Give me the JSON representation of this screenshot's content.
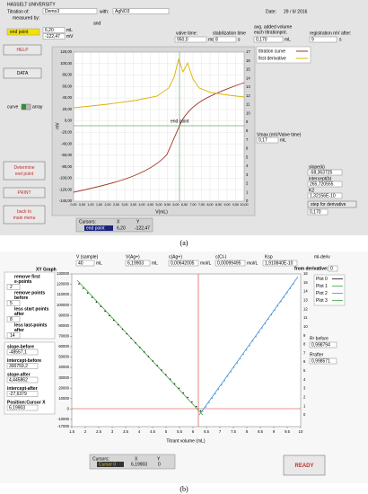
{
  "panel_a": {
    "university": "HASSELT UNIVERSITY",
    "titration_of_label": "Titration of:",
    "titration_of": "Demo3",
    "with_label": "with:",
    "with": "AgNO3",
    "measured_by_label": "measured by:",
    "and_label": "and",
    "date_label": "Date:",
    "date": "29 / 6/ 2016",
    "end_point": {
      "label": "end point",
      "x": "6,20",
      "x_unit": "mL",
      "y": "-122,47",
      "y_unit": "mV"
    },
    "valve_time": {
      "label": "valve time:",
      "value": "950,0",
      "unit": "ms"
    },
    "stabilization_time": {
      "label": "stabilization time",
      "value": "8",
      "unit": "s"
    },
    "avg_volume": {
      "label": [
        "avg. added volume",
        "each titrationpnt."
      ],
      "value": "0,170",
      "unit": "mL"
    },
    "registration": {
      "label": "registration mV after:",
      "value": "9",
      "unit": "s"
    },
    "buttons": {
      "help": "HELP",
      "data": "DATA",
      "determine": [
        "Determine",
        "end point"
      ],
      "print": "PRINT",
      "back": [
        "back to",
        "main menu"
      ]
    },
    "toggle": {
      "left": "curve",
      "right": "array"
    },
    "graph": {
      "y_label": "mV",
      "x_label": "V(mL)",
      "annotation": "end point",
      "yticks": [
        "120,00",
        "100,00",
        "80,00",
        "60,00",
        "40,00",
        "20,00",
        "0,00",
        "-20,00",
        "-40,00",
        "-60,00",
        "-80,00",
        "-100,00",
        "-120,00",
        "-140,00"
      ],
      "y2ticks": [
        "17",
        "16",
        "15",
        "14",
        "13",
        "12",
        "11",
        "10",
        "9",
        "8",
        "7",
        "6",
        "5",
        "4",
        "3",
        "2",
        "1",
        "0"
      ],
      "xticks": [
        "0,00",
        "0,50",
        "1,00",
        "1,50",
        "2,00",
        "2,50",
        "3,00",
        "3,50",
        "4,00",
        "4,50",
        "5,00",
        "5,50",
        "6,00",
        "6,50",
        "7,00",
        "7,50",
        "8,00",
        "8,50",
        "9,00",
        "9,50",
        "10,00"
      ]
    },
    "legend": [
      "titration curve",
      "first derivative"
    ],
    "vmax": {
      "label": "Vmax (mV/Valve time)",
      "value": "0,17",
      "unit": "mL"
    },
    "slope": {
      "label": "slope(k)",
      "value": "-58,363725"
    },
    "intercept": {
      "label": "intercept(b)",
      "value": "265,720555"
    },
    "k2": {
      "label": "K2",
      "value": "1,32156E-10"
    },
    "step": {
      "label": "step for derivative",
      "value": "0,170"
    },
    "cursors": {
      "title": "Cursors:",
      "x_header": "X",
      "y_header": "Y",
      "name": "end point",
      "x": "6,20",
      "y": "-122,47"
    }
  },
  "caption_a": "(a)",
  "panel_b": {
    "v_sample": {
      "label": "V (sample)",
      "value": "40",
      "unit": "mL"
    },
    "v_ag": {
      "label": "V(Ag+)",
      "value": "6,19903",
      "unit": "mL"
    },
    "c_ag": {
      "label": "c(Ag+)",
      "value": "0,00642005",
      "unit": "mol/L"
    },
    "c_cl": {
      "label": "c(Cl-)",
      "value": "0,00099495",
      "unit": "mol/L"
    },
    "ksp": {
      "label": "Ksp",
      "value": "1,910840E-10"
    },
    "ml_deriv": {
      "label": [
        "ml-deriv",
        "from derivative:"
      ],
      "value": "0"
    },
    "graph_title": "XY Graph",
    "controls": [
      {
        "label": [
          "remove first",
          "e-points"
        ],
        "value": "2"
      },
      {
        "label": [
          "remove points",
          "before"
        ],
        "value": "5"
      },
      {
        "label": [
          "less start points",
          "after"
        ],
        "value": "8"
      },
      {
        "label": [
          "less last-points",
          "after"
        ],
        "value": "14"
      }
    ],
    "results": [
      {
        "label": "slope-before",
        "value": "-48557,1"
      },
      {
        "label": "intercept-before",
        "value": "300759,2"
      },
      {
        "label": "slope-after",
        "value": "4,445862"
      },
      {
        "label": "intercept-after",
        "value": "-27,6379"
      },
      {
        "label": "Position:Cursor X",
        "value": "6,19903"
      }
    ],
    "graph": {
      "x_label": "Titrant volume (mL)",
      "yticks": [
        "130000",
        "120000",
        "110000",
        "100000",
        "90000",
        "80000",
        "70000",
        "60000",
        "50000",
        "40000",
        "30000",
        "20000",
        "10000",
        "0",
        "-10000",
        "-17000"
      ],
      "y2ticks": [
        "16",
        "15",
        "14",
        "13",
        "12",
        "11",
        "10",
        "9",
        "8",
        "7",
        "6",
        "5",
        "4",
        "3",
        "2",
        "1",
        "0"
      ],
      "xticks": [
        "1.5",
        "2",
        "2.5",
        "3",
        "3.5",
        "4",
        "4.5",
        "5",
        "5.5",
        "6",
        "6.5",
        "7",
        "7.5",
        "8",
        "8.5",
        "9",
        "9.5",
        "10"
      ]
    },
    "legend": [
      "Plot 0",
      "Plot 1",
      "Plot 2",
      "Plot 3"
    ],
    "r2_before": {
      "label": "R² before",
      "value": "0,998794"
    },
    "r2_after": {
      "label": "R²after",
      "value": "0,998571"
    },
    "cursors": {
      "title": "Cursors:",
      "x_header": "X",
      "y_header": "Y",
      "name": "Cursor 0",
      "x": "6,19903",
      "y": "0"
    },
    "ready": "READY"
  },
  "caption_b": "(b)"
}
